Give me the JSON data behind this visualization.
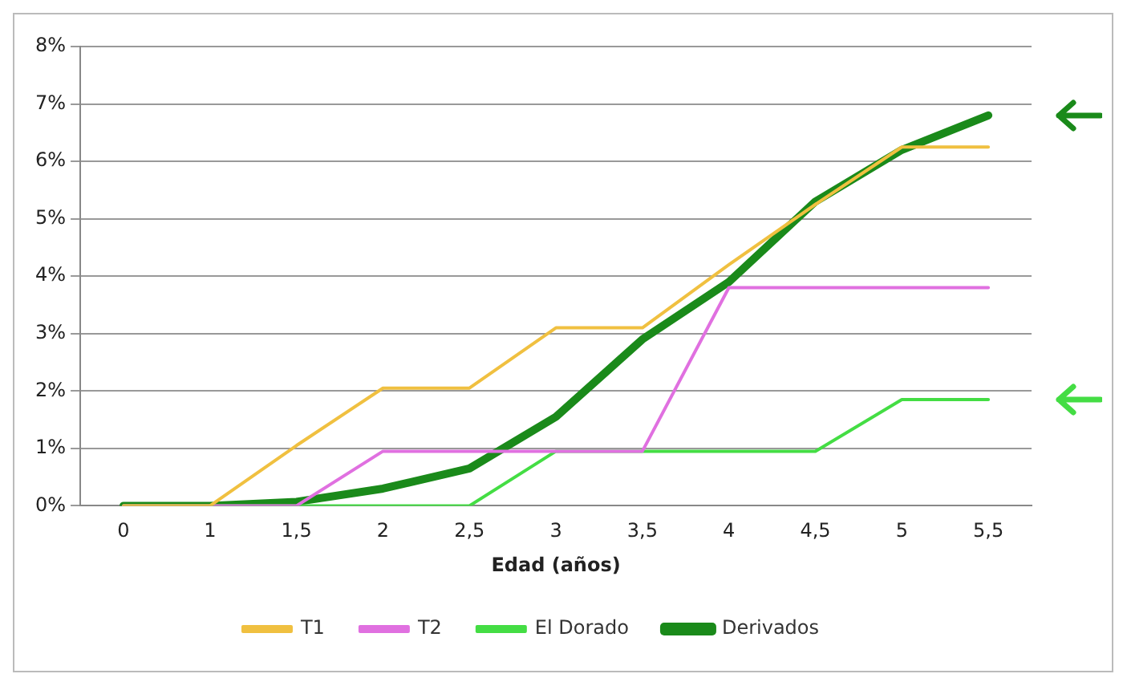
{
  "chart_data": {
    "type": "line",
    "xlabel": "Edad (años)",
    "categories": [
      "0",
      "1",
      "1,5",
      "2",
      "2,5",
      "3",
      "3,5",
      "4",
      "4,5",
      "5",
      "5,5"
    ],
    "series": [
      {
        "name": "T1",
        "color": "#f0c040",
        "values": [
          0,
          0,
          1.05,
          2.05,
          2.05,
          3.1,
          3.1,
          4.2,
          5.25,
          6.25,
          6.25
        ]
      },
      {
        "name": "T2",
        "color": "#e070e0",
        "values": [
          0,
          0,
          0,
          0.95,
          0.95,
          0.95,
          0.95,
          3.8,
          3.8,
          3.8,
          3.8
        ]
      },
      {
        "name": "El Dorado",
        "color": "#44dd44",
        "values": [
          0,
          0,
          0,
          0,
          0,
          0.95,
          0.95,
          0.95,
          0.95,
          1.85,
          1.85
        ]
      },
      {
        "name": "Derivados",
        "color": "#1a8a1a",
        "values": [
          0,
          0,
          0.07,
          0.3,
          0.65,
          1.55,
          2.9,
          3.9,
          5.3,
          6.2,
          6.8
        ]
      }
    ],
    "ylim": [
      0,
      8
    ],
    "yticks": [
      {
        "value": 0,
        "label": "0%"
      },
      {
        "value": 1,
        "label": "1%"
      },
      {
        "value": 2,
        "label": "2%"
      },
      {
        "value": 3,
        "label": "3%"
      },
      {
        "value": 4,
        "label": "4%"
      },
      {
        "value": 5,
        "label": "5%"
      },
      {
        "value": 6,
        "label": "6%"
      },
      {
        "value": 7,
        "label": "7%"
      },
      {
        "value": 8,
        "label": "8%"
      }
    ],
    "grid": "y",
    "legend": "bottom",
    "marker": "none",
    "line_style": "solid"
  }
}
